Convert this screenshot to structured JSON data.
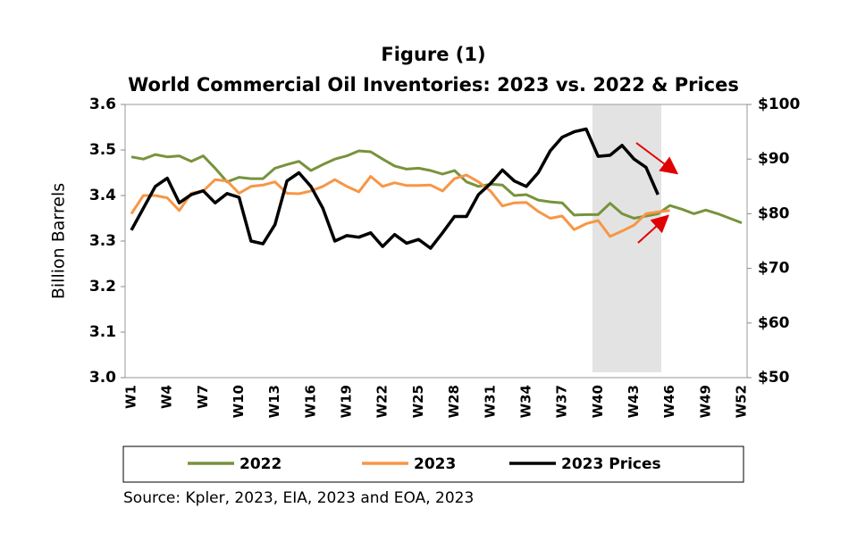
{
  "chart_data": {
    "type": "line",
    "title": "Figure (1)",
    "subtitle": "World Commercial Oil Inventories: 2023 vs. 2022 & Prices",
    "y_label": "Billion Barrels",
    "source": "Source: Kpler, 2023, EIA, 2023 and EOA, 2023",
    "categories": [
      "W1",
      null,
      null,
      "W4",
      null,
      null,
      "W7",
      null,
      null,
      "W10",
      null,
      null,
      "W13",
      null,
      null,
      "W16",
      null,
      null,
      "W19",
      null,
      null,
      "W22",
      null,
      null,
      "W25",
      null,
      null,
      "W28",
      null,
      null,
      "W31",
      null,
      null,
      "W34",
      null,
      null,
      "W37",
      null,
      null,
      "W40",
      null,
      null,
      "W43",
      null,
      null,
      "W46",
      null,
      null,
      "W49",
      null,
      null,
      "W52"
    ],
    "ylim": [
      3.0,
      3.6
    ],
    "yticks": [
      {
        "value": 3,
        "label": "3.0"
      },
      3.1,
      3.2,
      3.3,
      3.4,
      3.5,
      3.6
    ],
    "y2lim": [
      50,
      100
    ],
    "y2ticks": [
      {
        "value": 50,
        "label": "$50"
      },
      {
        "value": 60,
        "label": "$60"
      },
      {
        "value": 70,
        "label": "$70"
      },
      {
        "value": 80,
        "label": "$80"
      },
      {
        "value": 90,
        "label": "$90"
      },
      {
        "value": 100,
        "label": "$100"
      }
    ],
    "series": [
      {
        "name": "2022",
        "color": "#77933c",
        "values": [
          3.485,
          3.48,
          3.49,
          3.485,
          3.487,
          3.475,
          3.487,
          3.46,
          3.43,
          3.44,
          3.437,
          3.437,
          3.46,
          3.468,
          3.475,
          3.455,
          3.468,
          3.48,
          3.487,
          3.498,
          3.496,
          3.48,
          3.465,
          3.458,
          3.46,
          3.455,
          3.447,
          3.455,
          3.43,
          3.42,
          3.425,
          3.423,
          3.4,
          3.402,
          3.39,
          3.386,
          3.384,
          3.357,
          3.358,
          3.358,
          3.383,
          3.36,
          3.35,
          3.355,
          3.36,
          3.378,
          3.37,
          3.36,
          3.368,
          3.36,
          3.35,
          3.34
        ]
      },
      {
        "name": "2023",
        "color": "#f79646",
        "values": [
          3.36,
          3.4,
          3.4,
          3.395,
          3.367,
          3.405,
          3.41,
          3.435,
          3.432,
          3.405,
          3.42,
          3.423,
          3.43,
          3.405,
          3.404,
          3.41,
          3.42,
          3.435,
          3.42,
          3.408,
          3.442,
          3.42,
          3.428,
          3.422,
          3.422,
          3.423,
          3.41,
          3.437,
          3.445,
          3.43,
          3.41,
          3.377,
          3.384,
          3.385,
          3.365,
          3.35,
          3.355,
          3.325,
          3.338,
          3.345,
          3.31,
          3.322,
          3.335,
          3.36,
          3.364,
          3.367,
          null,
          null,
          null,
          null,
          null,
          null
        ]
      },
      {
        "name": "2023 Prices",
        "color": "#000000",
        "axis": "y2",
        "values": [
          77,
          81,
          85,
          86.5,
          82,
          83.5,
          84.2,
          82,
          83.7,
          83,
          75,
          74.5,
          78,
          86,
          87.5,
          85,
          81,
          75,
          76,
          75.7,
          76.5,
          74,
          76.2,
          74.6,
          75.3,
          73.7,
          76.5,
          79.5,
          79.5,
          83.5,
          85.5,
          88,
          86,
          85,
          87.5,
          91.5,
          94,
          95,
          95.5,
          90.5,
          90.7,
          92.5,
          90,
          88.5,
          83.5,
          null,
          null,
          null,
          null,
          null,
          null,
          null
        ]
      }
    ]
  }
}
